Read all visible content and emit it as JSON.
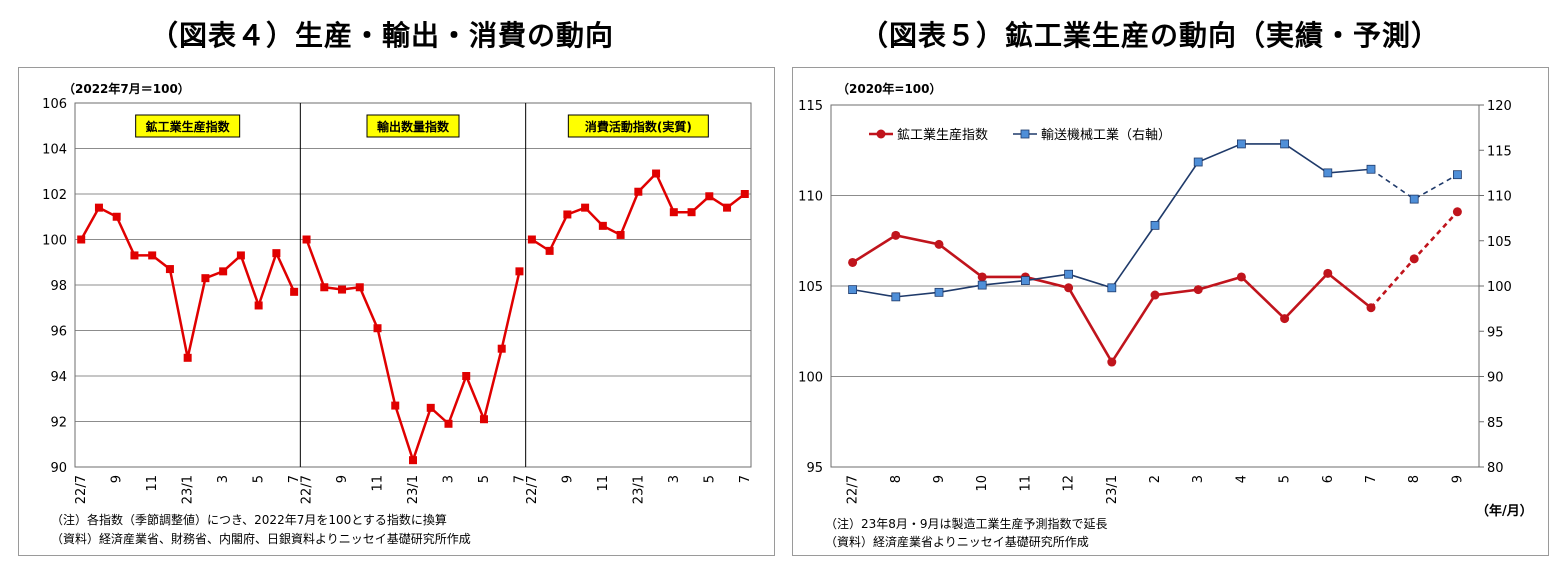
{
  "chart_data": [
    {
      "type": "line",
      "title": "（図表４）生産・輸出・消費の動向",
      "unit_label": "（2022年7月＝100）",
      "ylim": [
        90,
        106
      ],
      "yticks": [
        "106",
        "104",
        "102",
        "100",
        "98",
        "96",
        "94",
        "92",
        "90"
      ],
      "grid": true,
      "panels": [
        {
          "name": "鉱工業生産指数",
          "x": [
            "22/7",
            "22/8",
            "22/9",
            "22/10",
            "22/11",
            "22/12",
            "23/1",
            "23/2",
            "23/3",
            "23/4",
            "23/5",
            "23/6",
            "23/7"
          ],
          "x_tick_labels": [
            "22/7",
            "",
            "9",
            "",
            "11",
            "",
            "23/1",
            "",
            "3",
            "",
            "5",
            "",
            "7"
          ],
          "values": [
            100.0,
            101.4,
            101.0,
            99.3,
            99.3,
            98.7,
            94.8,
            98.3,
            98.6,
            99.3,
            97.1,
            99.4,
            97.7
          ]
        },
        {
          "name": "輸出数量指数",
          "x": [
            "22/7",
            "22/8",
            "22/9",
            "22/10",
            "22/11",
            "22/12",
            "23/1",
            "23/2",
            "23/3",
            "23/4",
            "23/5",
            "23/6",
            "23/7"
          ],
          "x_tick_labels": [
            "22/7",
            "",
            "9",
            "",
            "11",
            "",
            "23/1",
            "",
            "3",
            "",
            "5",
            "",
            "7"
          ],
          "values": [
            100.0,
            97.9,
            97.8,
            97.9,
            96.1,
            92.7,
            90.3,
            92.6,
            91.9,
            94.0,
            92.1,
            95.2,
            98.6
          ]
        },
        {
          "name": "消費活動指数(実質)",
          "x": [
            "22/7",
            "22/8",
            "22/9",
            "22/10",
            "22/11",
            "22/12",
            "23/1",
            "23/2",
            "23/3",
            "23/4",
            "23/5",
            "23/6",
            "23/7"
          ],
          "x_tick_labels": [
            "22/7",
            "",
            "9",
            "",
            "11",
            "",
            "23/1",
            "",
            "3",
            "",
            "5",
            "",
            "7"
          ],
          "values": [
            100.0,
            99.5,
            101.1,
            101.4,
            100.6,
            100.2,
            102.1,
            102.9,
            101.2,
            101.2,
            101.9,
            101.4,
            102.0
          ]
        }
      ],
      "colors": {
        "line": "#e00000",
        "label_bg": "#ffff00"
      },
      "notes": [
        "（注）各指数（季節調整値）につき、2022年7月を100とする指数に換算",
        "（資料）経済産業省、財務省、内閣府、日銀資料よりニッセイ基礎研究所作成"
      ]
    },
    {
      "type": "line",
      "title": "（図表５）鉱工業生産の動向（実績・予測）",
      "unit_label": "（2020年=100）",
      "x": [
        "22/7",
        "8",
        "9",
        "10",
        "11",
        "12",
        "23/1",
        "2",
        "3",
        "4",
        "5",
        "6",
        "7",
        "8",
        "9"
      ],
      "xlabel": "（年/月）",
      "ylim": [
        95,
        115
      ],
      "yticks": [
        "115",
        "110",
        "105",
        "100",
        "95"
      ],
      "y2lim": [
        80,
        120
      ],
      "y2ticks": [
        "120",
        "115",
        "110",
        "105",
        "100",
        "95",
        "90",
        "85",
        "80"
      ],
      "grid": true,
      "legend": "top-left",
      "series": [
        {
          "name": "鉱工業生産指数",
          "axis": "left",
          "color": "#c0141c",
          "values": [
            106.3,
            107.8,
            107.3,
            105.5,
            105.5,
            104.9,
            100.8,
            104.5,
            104.8,
            105.5,
            103.2,
            105.7,
            103.8,
            106.5,
            109.1
          ],
          "forecast_from_index": 12
        },
        {
          "name": "輸送機械工業（右軸）",
          "axis": "right",
          "color": "#1f3a6a",
          "marker_color": "#4f8fd8",
          "values": [
            99.6,
            98.8,
            99.3,
            100.1,
            100.6,
            101.3,
            99.8,
            106.7,
            113.7,
            115.7,
            115.7,
            112.5,
            112.9,
            109.6,
            112.3
          ],
          "forecast_from_index": 12
        }
      ],
      "notes": [
        "（注）23年8月・9月は製造工業生産予測指数で延長",
        "（資料）経済産業省よりニッセイ基礎研究所作成"
      ]
    }
  ]
}
